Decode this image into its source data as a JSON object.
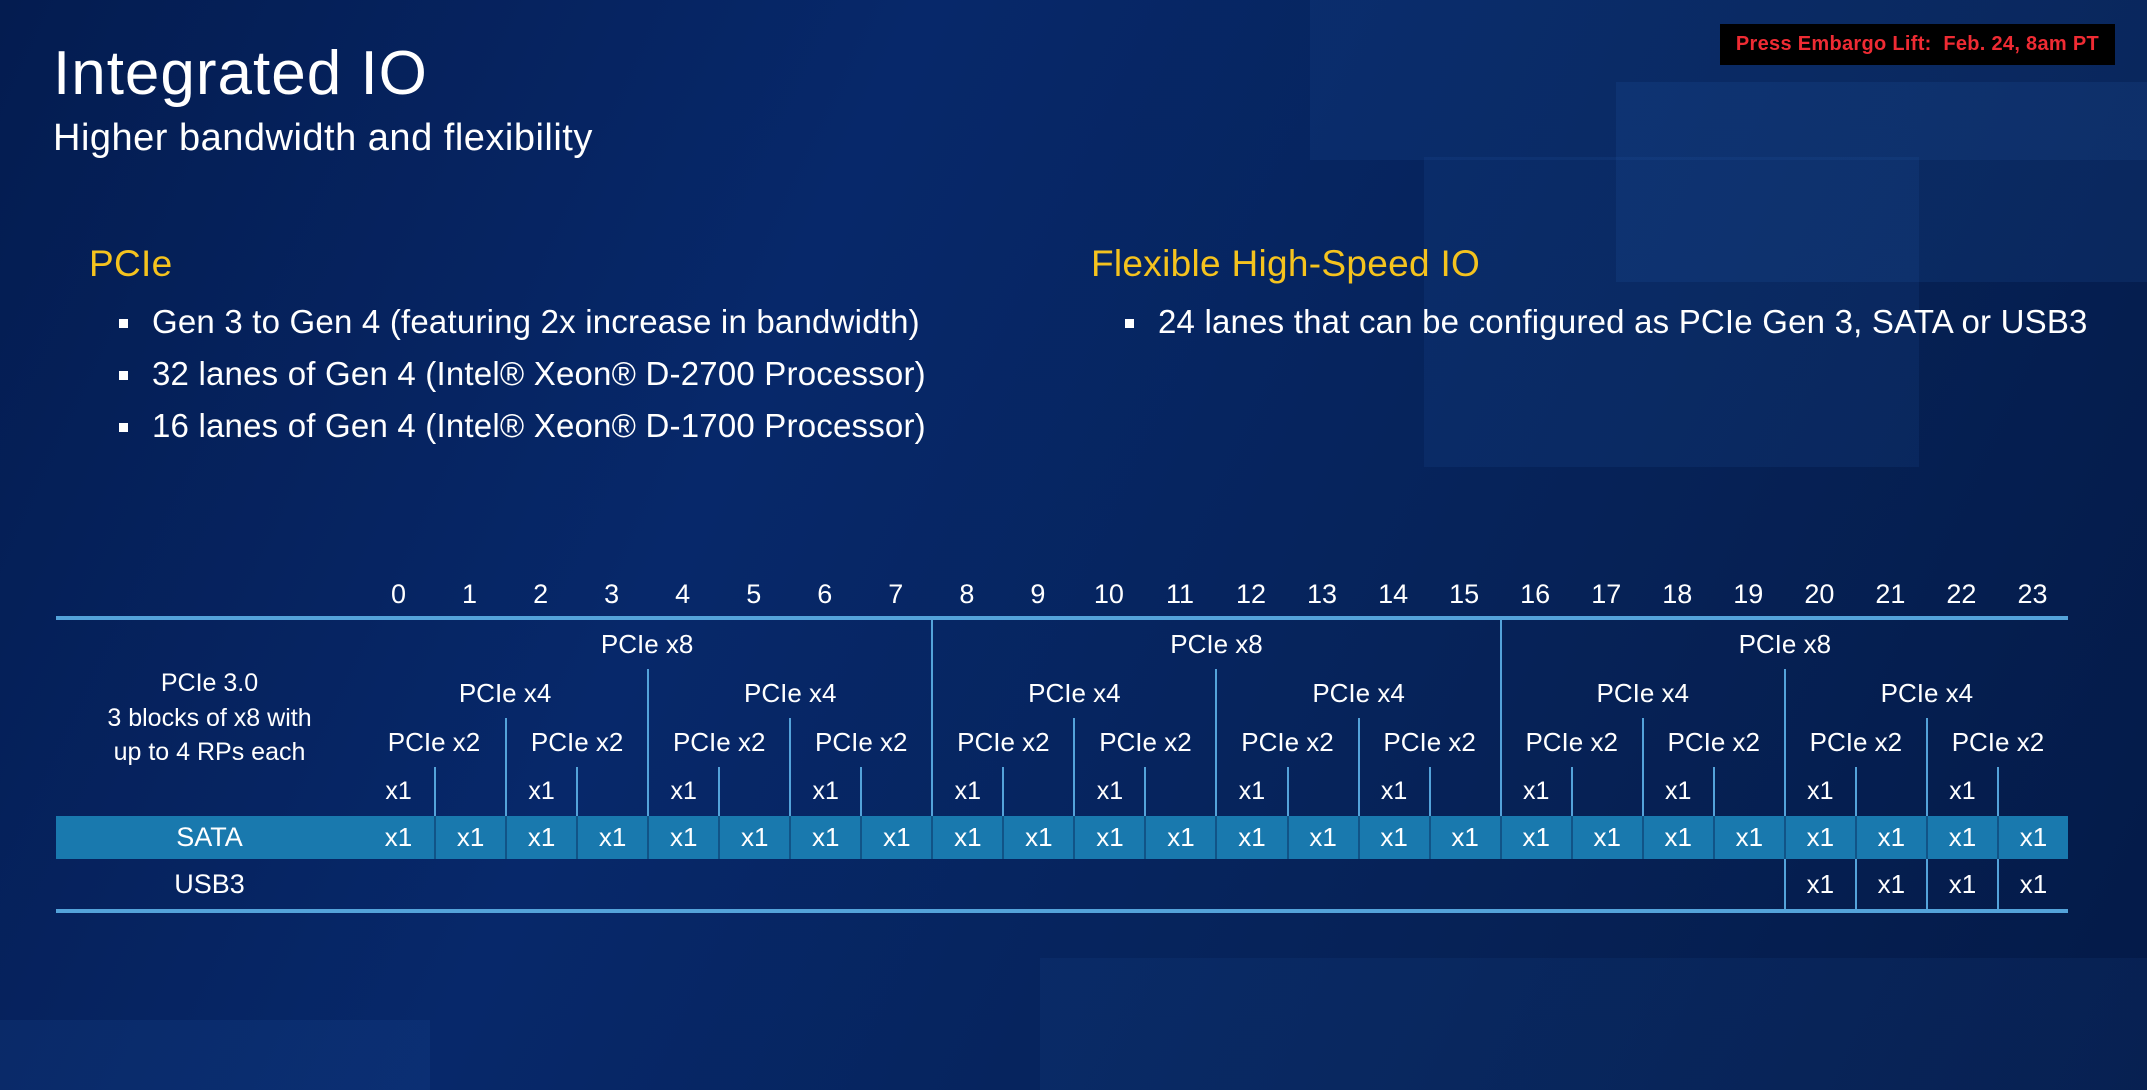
{
  "colors": {
    "accent_yellow": "#f5c31e",
    "table_line_blue": "#54a3da",
    "sata_band_blue": "#1979ae",
    "embargo_red": "#ef2b33",
    "slide_background": "#05205a"
  },
  "embargo": {
    "label": "Press Embargo Lift:  Feb. 24, 8am PT"
  },
  "header": {
    "title": "Integrated IO",
    "subtitle": "Higher bandwidth and flexibility"
  },
  "pcie_section": {
    "heading": "PCIe",
    "bullets": [
      "Gen 3 to Gen 4 (featuring 2x increase in bandwidth)",
      "32 lanes of Gen 4 (Intel® Xeon® D-2700 Processor)",
      "16 lanes of Gen 4 (Intel® Xeon® D-1700 Processor)"
    ]
  },
  "hsio_section": {
    "heading": "Flexible High-Speed IO",
    "bullets": [
      "24 lanes that can be configured as PCIe Gen 3, SATA or USB3"
    ]
  },
  "lane_table": {
    "block_label_lines": [
      "PCIe 3.0",
      "3 blocks of x8 with",
      "up to 4 RPs each"
    ],
    "lane_numbers": [
      "0",
      "1",
      "2",
      "3",
      "4",
      "5",
      "6",
      "7",
      "8",
      "9",
      "10",
      "11",
      "12",
      "13",
      "14",
      "15",
      "16",
      "17",
      "18",
      "19",
      "20",
      "21",
      "22",
      "23"
    ],
    "x8_blocks": [
      "PCIe x8",
      "PCIe x8",
      "PCIe x8"
    ],
    "x4_blocks": [
      "PCIe x4",
      "PCIe x4",
      "PCIe x4",
      "PCIe x4",
      "PCIe x4",
      "PCIe x4"
    ],
    "x2_blocks": [
      "PCIe x2",
      "PCIe x2",
      "PCIe x2",
      "PCIe x2",
      "PCIe x2",
      "PCIe x2",
      "PCIe x2",
      "PCIe x2",
      "PCIe x2",
      "PCIe x2",
      "PCIe x2",
      "PCIe x2"
    ],
    "x1_row": [
      "x1",
      "",
      "x1",
      "",
      "x1",
      "",
      "x1",
      "",
      "x1",
      "",
      "x1",
      "",
      "x1",
      "",
      "x1",
      "",
      "x1",
      "",
      "x1",
      "",
      "x1",
      "",
      "x1",
      ""
    ],
    "sata_row": {
      "label": "SATA",
      "cells": [
        "x1",
        "x1",
        "x1",
        "x1",
        "x1",
        "x1",
        "x1",
        "x1",
        "x1",
        "x1",
        "x1",
        "x1",
        "x1",
        "x1",
        "x1",
        "x1",
        "x1",
        "x1",
        "x1",
        "x1",
        "x1",
        "x1",
        "x1",
        "x1"
      ]
    },
    "usb3_row": {
      "label": "USB3",
      "cells": [
        "",
        "",
        "",
        "",
        "",
        "",
        "",
        "",
        "",
        "",
        "",
        "",
        "",
        "",
        "",
        "",
        "",
        "",
        "",
        "",
        "x1",
        "x1",
        "x1",
        "x1"
      ]
    }
  }
}
